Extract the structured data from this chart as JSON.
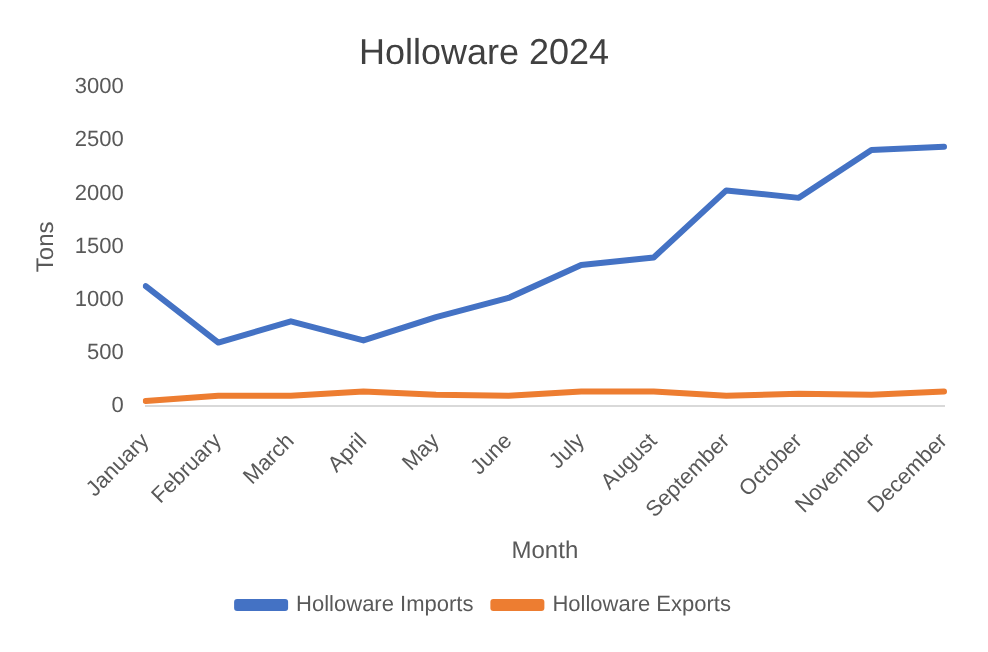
{
  "chart_data": {
    "type": "line",
    "title": "Holloware 2024",
    "xlabel": "Month",
    "ylabel": "Tons",
    "categories": [
      "January",
      "February",
      "March",
      "April",
      "May",
      "June",
      "July",
      "August",
      "September",
      "October",
      "November",
      "December"
    ],
    "series": [
      {
        "name": "Holloware Imports",
        "color": "#4472c4",
        "values": [
          1130,
          600,
          800,
          620,
          840,
          1020,
          1330,
          1400,
          2030,
          1960,
          2410,
          2440
        ]
      },
      {
        "name": "Holloware Exports",
        "color": "#ed7d31",
        "values": [
          50,
          100,
          100,
          140,
          110,
          100,
          140,
          140,
          100,
          120,
          110,
          140
        ]
      }
    ],
    "ylim": [
      0,
      3000
    ],
    "yticks": [
      0,
      500,
      1000,
      1500,
      2000,
      2500,
      3000
    ],
    "grid": false,
    "legend": "bottom",
    "marker": "none",
    "line_style": "solid"
  }
}
